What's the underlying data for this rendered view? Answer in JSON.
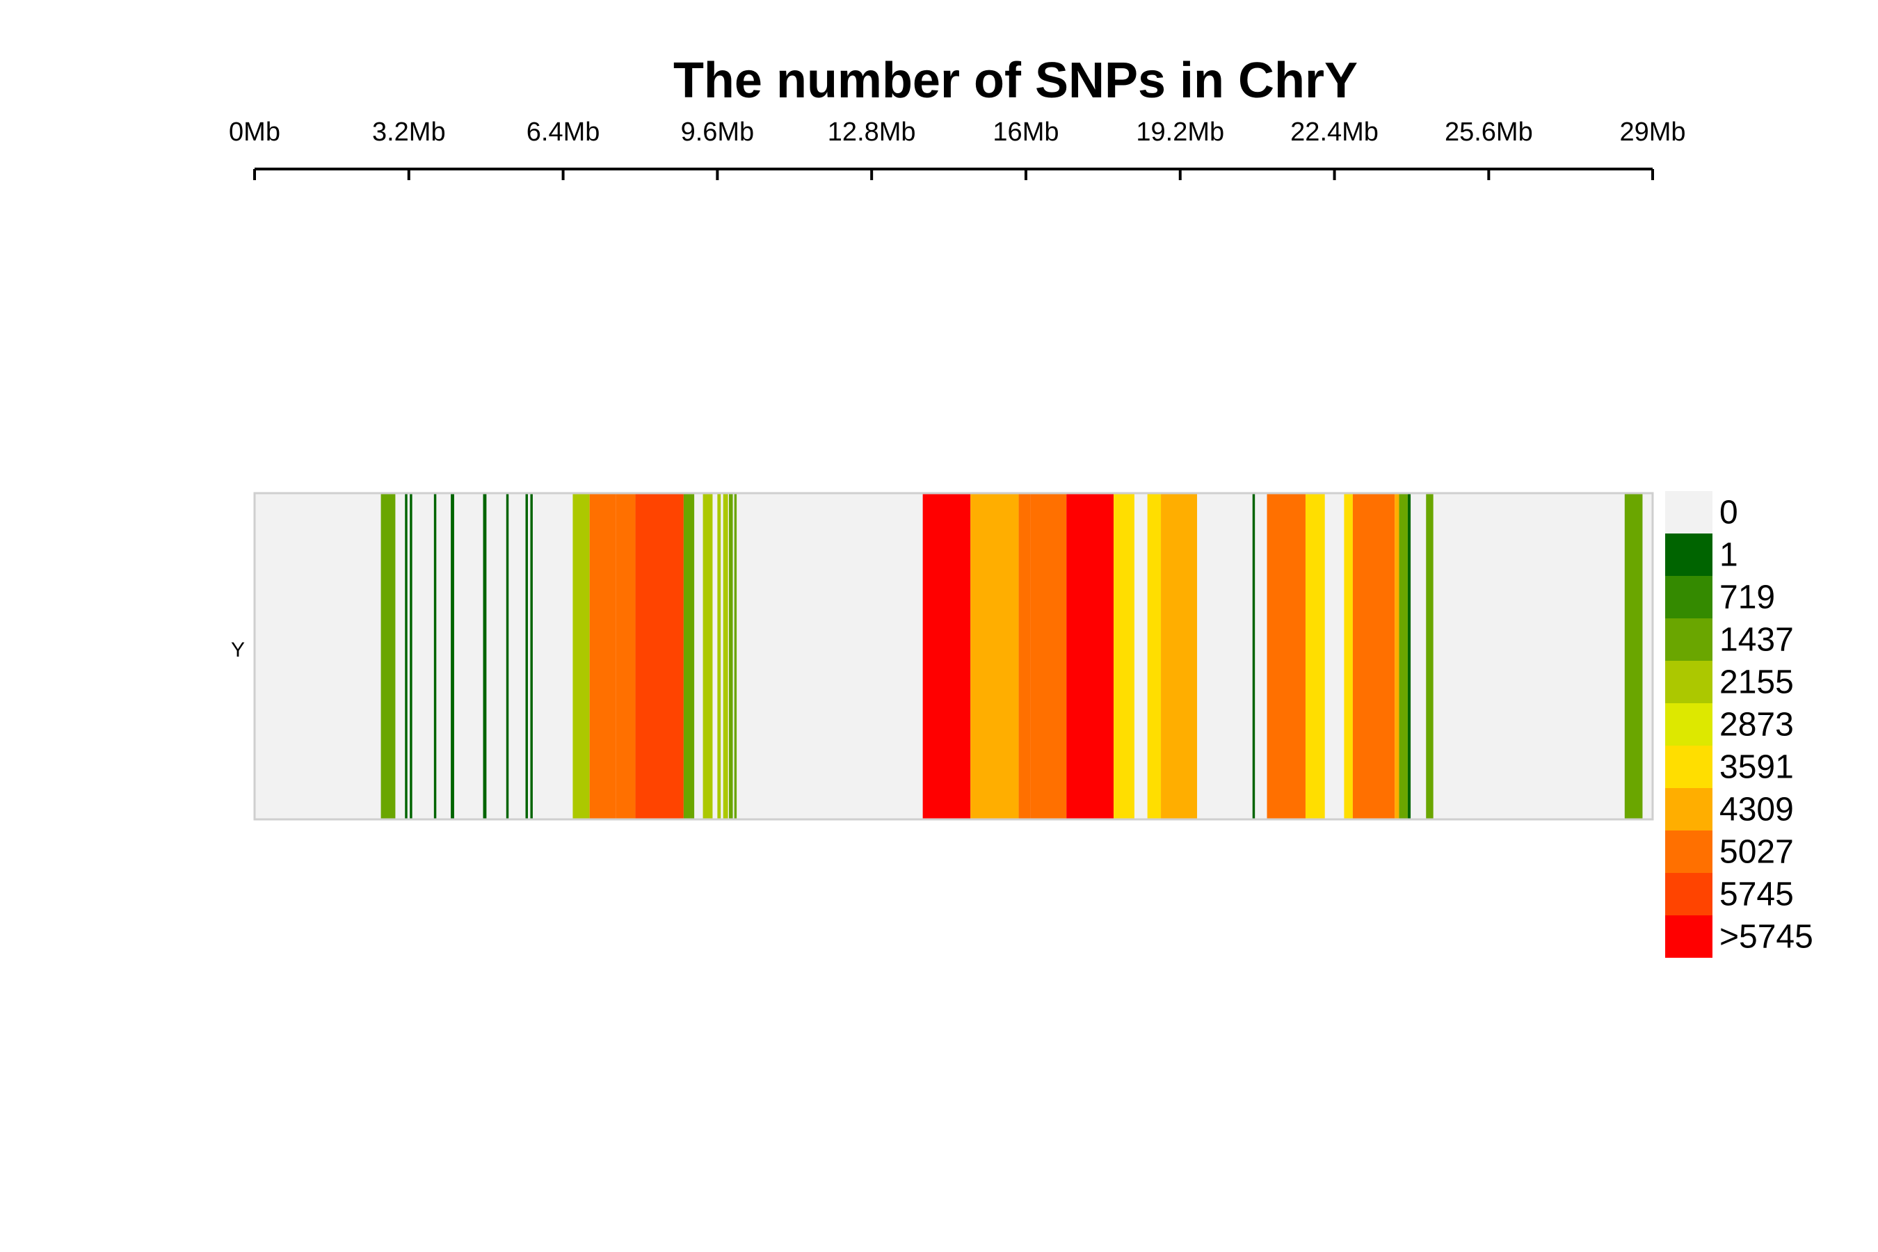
{
  "chart_data": {
    "type": "heatmap",
    "title": "The number of SNPs in ChrY",
    "xlabel": "",
    "ylabel": "",
    "chromosome_label": "Y",
    "x_unit": "Mb",
    "xlim": [
      0,
      29
    ],
    "x_ticks": [
      0,
      3.2,
      6.4,
      9.6,
      12.8,
      16,
      19.2,
      22.4,
      25.6,
      29
    ],
    "x_tick_labels": [
      "0Mb",
      "3.2Mb",
      "6.4Mb",
      "9.6Mb",
      "12.8Mb",
      "16Mb",
      "19.2Mb",
      "22.4Mb",
      "25.6Mb",
      "29Mb"
    ],
    "grid": false,
    "legend_position": "right",
    "legend": [
      {
        "label": "0",
        "color": "#f2f2f2"
      },
      {
        "label": "1",
        "color": "#006400"
      },
      {
        "label": "719",
        "color": "#348a00"
      },
      {
        "label": "1437",
        "color": "#6aa600"
      },
      {
        "label": "2155",
        "color": "#acc800"
      },
      {
        "label": "2873",
        "color": "#dde800"
      },
      {
        "label": "3591",
        "color": "#ffde00"
      },
      {
        "label": "4309",
        "color": "#ffae00"
      },
      {
        "label": "5027",
        "color": "#ff7000"
      },
      {
        "label": "5745",
        "color": "#ff4400"
      },
      {
        "label": ">5745",
        "color": "#ff0000"
      }
    ],
    "background_color": "#f2f2f2",
    "segments": [
      {
        "start": 2.62,
        "end": 2.92,
        "level": 3
      },
      {
        "start": 3.12,
        "end": 3.17,
        "level": 1
      },
      {
        "start": 3.22,
        "end": 3.27,
        "level": 1
      },
      {
        "start": 3.72,
        "end": 3.77,
        "level": 1
      },
      {
        "start": 4.07,
        "end": 4.14,
        "level": 1
      },
      {
        "start": 4.74,
        "end": 4.81,
        "level": 1
      },
      {
        "start": 5.22,
        "end": 5.27,
        "level": 1
      },
      {
        "start": 5.62,
        "end": 5.67,
        "level": 1
      },
      {
        "start": 5.72,
        "end": 5.77,
        "level": 1
      },
      {
        "start": 6.6,
        "end": 6.95,
        "level": 4
      },
      {
        "start": 6.95,
        "end": 7.5,
        "level": 8
      },
      {
        "start": 7.5,
        "end": 7.9,
        "level": 8
      },
      {
        "start": 7.9,
        "end": 8.9,
        "level": 9
      },
      {
        "start": 8.9,
        "end": 9.12,
        "level": 3
      },
      {
        "start": 9.3,
        "end": 9.5,
        "level": 4
      },
      {
        "start": 9.6,
        "end": 9.67,
        "level": 4
      },
      {
        "start": 9.72,
        "end": 9.82,
        "level": 4
      },
      {
        "start": 9.84,
        "end": 9.92,
        "level": 3
      },
      {
        "start": 9.95,
        "end": 10.0,
        "level": 3
      },
      {
        "start": 13.86,
        "end": 14.85,
        "level": 10
      },
      {
        "start": 14.85,
        "end": 15.85,
        "level": 7
      },
      {
        "start": 15.85,
        "end": 16.1,
        "level": 8
      },
      {
        "start": 16.1,
        "end": 16.84,
        "level": 8
      },
      {
        "start": 16.84,
        "end": 17.82,
        "level": 10
      },
      {
        "start": 17.82,
        "end": 18.25,
        "level": 6
      },
      {
        "start": 18.52,
        "end": 18.8,
        "level": 6
      },
      {
        "start": 18.8,
        "end": 19.55,
        "level": 7
      },
      {
        "start": 20.7,
        "end": 20.75,
        "level": 1
      },
      {
        "start": 21.0,
        "end": 21.8,
        "level": 8
      },
      {
        "start": 21.8,
        "end": 22.2,
        "level": 6
      },
      {
        "start": 22.6,
        "end": 22.78,
        "level": 6
      },
      {
        "start": 22.78,
        "end": 23.2,
        "level": 8
      },
      {
        "start": 23.2,
        "end": 23.65,
        "level": 8
      },
      {
        "start": 23.65,
        "end": 23.74,
        "level": 7
      },
      {
        "start": 23.74,
        "end": 23.92,
        "level": 3
      },
      {
        "start": 23.92,
        "end": 23.98,
        "level": 1
      },
      {
        "start": 24.3,
        "end": 24.45,
        "level": 3
      },
      {
        "start": 28.42,
        "end": 28.79,
        "level": 3
      }
    ]
  }
}
